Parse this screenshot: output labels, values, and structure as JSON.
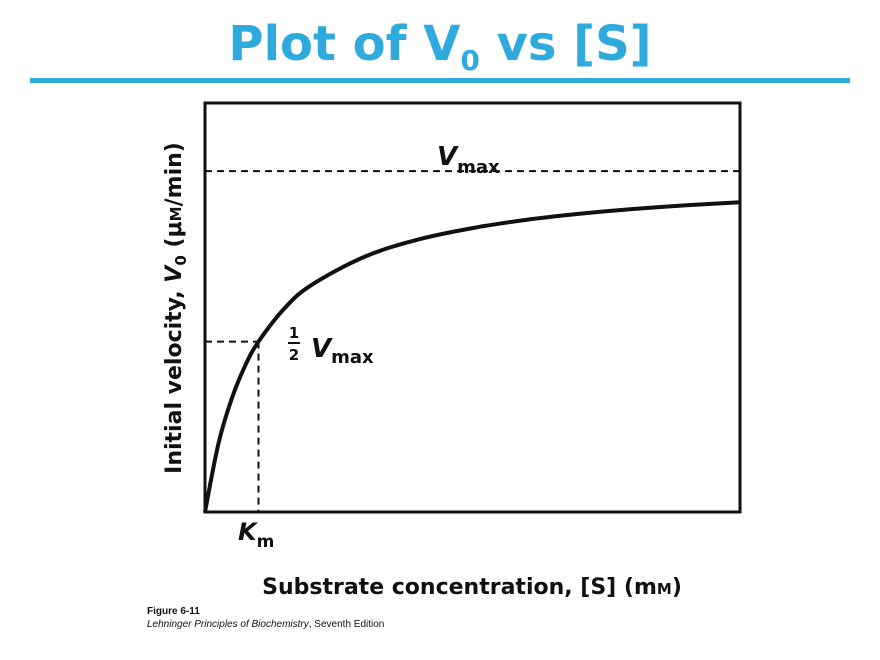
{
  "slide": {
    "title_main": "Plot of V",
    "title_sub": "0",
    "title_tail": " vs [S]",
    "accent_color": "#2eaadc"
  },
  "figure": {
    "number": "Figure 6-11",
    "book_title": "Lehninger Principles of Biochemistry",
    "edition": ", Seventh Edition"
  },
  "chart_data": {
    "type": "line",
    "title": "",
    "xlabel": "Substrate concentration, [S] (mM)",
    "ylabel": "Initial velocity, V0 (μM/min)",
    "x_tick_label": "Km",
    "grid": false,
    "legend": "none",
    "xlim": [
      0,
      10
    ],
    "ylim": [
      0,
      1.2
    ],
    "series": [
      {
        "x": [
          0,
          0.25,
          0.5,
          0.75,
          1.0,
          1.5,
          2,
          3,
          4,
          5,
          6,
          7,
          8,
          9,
          10
        ],
        "y": [
          0,
          0.2,
          0.333,
          0.429,
          0.5,
          0.6,
          0.667,
          0.75,
          0.8,
          0.833,
          0.857,
          0.875,
          0.889,
          0.9,
          0.909
        ]
      }
    ],
    "reference_lines": {
      "vmax": 1.0,
      "half_vmax": 0.5,
      "km": 1.0
    },
    "annotations": {
      "vmax_label": "V",
      "vmax_sub": "max",
      "half_num": "1",
      "half_den": "2",
      "half_label": "V",
      "half_sub": "max",
      "km_label": "K",
      "km_sub": "m"
    }
  }
}
